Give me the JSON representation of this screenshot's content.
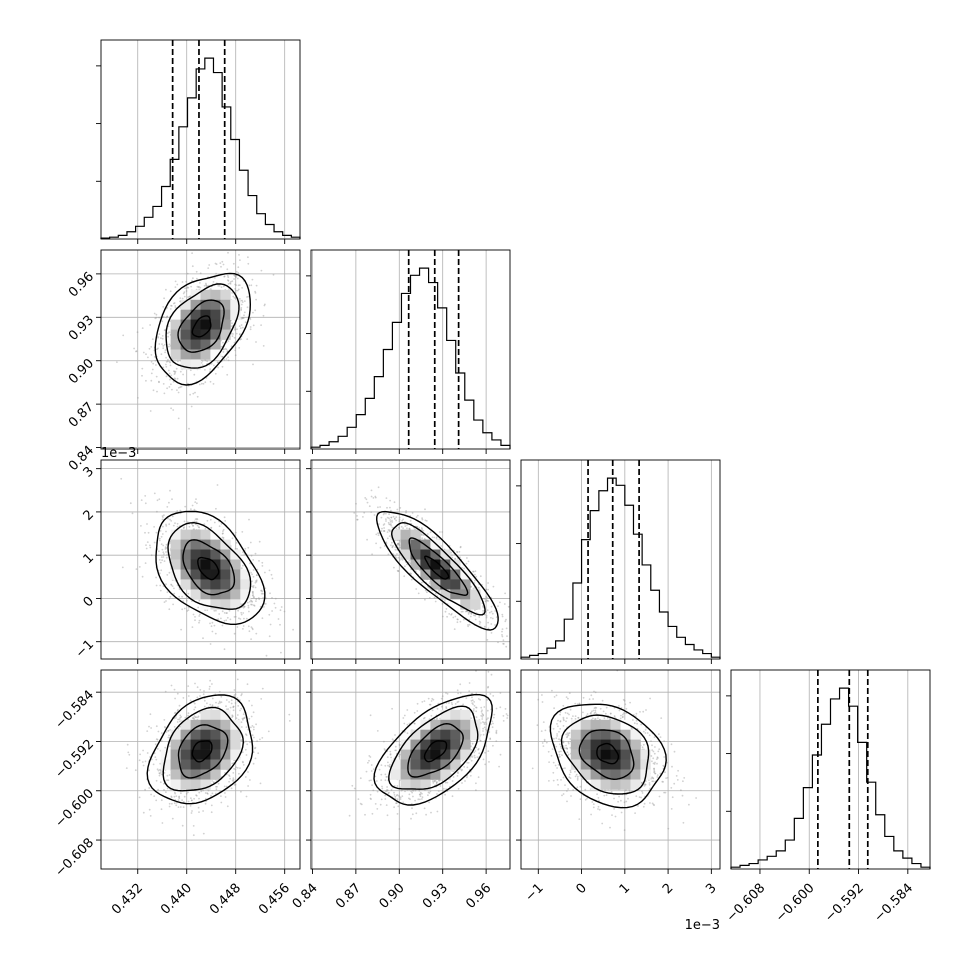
{
  "chart_data": {
    "type": "corner",
    "parameters": [
      {
        "range": [
          0.426,
          0.4585
        ],
        "ticks": [
          0.432,
          0.44,
          0.448,
          0.456
        ],
        "tick_labels": [
          "0.432",
          "0.440",
          "0.448",
          "0.456"
        ],
        "quantiles": [
          0.4377,
          0.442,
          0.4462
        ],
        "offset_label": ""
      },
      {
        "range": [
          0.839,
          0.9765
        ],
        "ticks": [
          0.84,
          0.87,
          0.9,
          0.93,
          0.96
        ],
        "tick_labels": [
          "0.84",
          "0.87",
          "0.90",
          "0.93",
          "0.96"
        ],
        "quantiles": [
          0.9065,
          0.9245,
          0.941
        ],
        "offset_label": ""
      },
      {
        "range": [
          -1.4,
          3.2
        ],
        "ticks": [
          -1,
          0,
          1,
          2,
          3
        ],
        "tick_labels": [
          "−1",
          "0",
          "1",
          "2",
          "3"
        ],
        "quantiles": [
          0.15,
          0.72,
          1.33
        ],
        "offset_label": "1e−3"
      },
      {
        "range": [
          -0.6127,
          -0.5804
        ],
        "ticks": [
          -0.608,
          -0.6,
          -0.592,
          -0.584
        ],
        "tick_labels": [
          "−0.608",
          "−0.600",
          "−0.592",
          "−0.584"
        ],
        "quantiles": [
          -0.5986,
          -0.5935,
          -0.5905
        ],
        "offset_label": ""
      }
    ],
    "histograms": [
      [
        0.5,
        1,
        2,
        4,
        7,
        12,
        18,
        29,
        44,
        62,
        78,
        94,
        100,
        92,
        73,
        55,
        38,
        24,
        14,
        8,
        4,
        2,
        1
      ],
      [
        1,
        2,
        4,
        7,
        12,
        19,
        28,
        40,
        55,
        70,
        86,
        96,
        100,
        92,
        78,
        60,
        42,
        27,
        16,
        9,
        5,
        2
      ],
      [
        1,
        2,
        3,
        6,
        10,
        22,
        42,
        66,
        82,
        93,
        100,
        96,
        85,
        69,
        52,
        38,
        26,
        18,
        12,
        8,
        5,
        3,
        1
      ],
      [
        1,
        2,
        3,
        5,
        7,
        10,
        16,
        28,
        45,
        63,
        80,
        94,
        100,
        90,
        70,
        48,
        30,
        18,
        10,
        6,
        3,
        1
      ]
    ],
    "pairs": [
      {
        "x": 0,
        "y": 1,
        "mean": [
          0.4425,
          0.9235
        ],
        "sd": [
          0.0037,
          0.018
        ],
        "rho": 0.4
      },
      {
        "x": 0,
        "y": 2,
        "mean": [
          0.4435,
          0.7
        ],
        "sd": [
          0.0042,
          0.62
        ],
        "rho": -0.42
      },
      {
        "x": 1,
        "y": 2,
        "mean": [
          0.926,
          0.7
        ],
        "sd": [
          0.02,
          0.65
        ],
        "rho": -0.85
      },
      {
        "x": 0,
        "y": 3,
        "mean": [
          0.4425,
          -0.5935
        ],
        "sd": [
          0.004,
          0.0042
        ],
        "rho": 0.3
      },
      {
        "x": 1,
        "y": 3,
        "mean": [
          0.925,
          -0.5935
        ],
        "sd": [
          0.019,
          0.0042
        ],
        "rho": 0.55
      },
      {
        "x": 2,
        "y": 3,
        "mean": [
          0.6,
          -0.594
        ],
        "sd": [
          0.62,
          0.004
        ],
        "rho": -0.25
      }
    ],
    "grid": true,
    "line_color": "#000000",
    "point_color": "#9a9a9a",
    "title": "",
    "legend": "none"
  }
}
